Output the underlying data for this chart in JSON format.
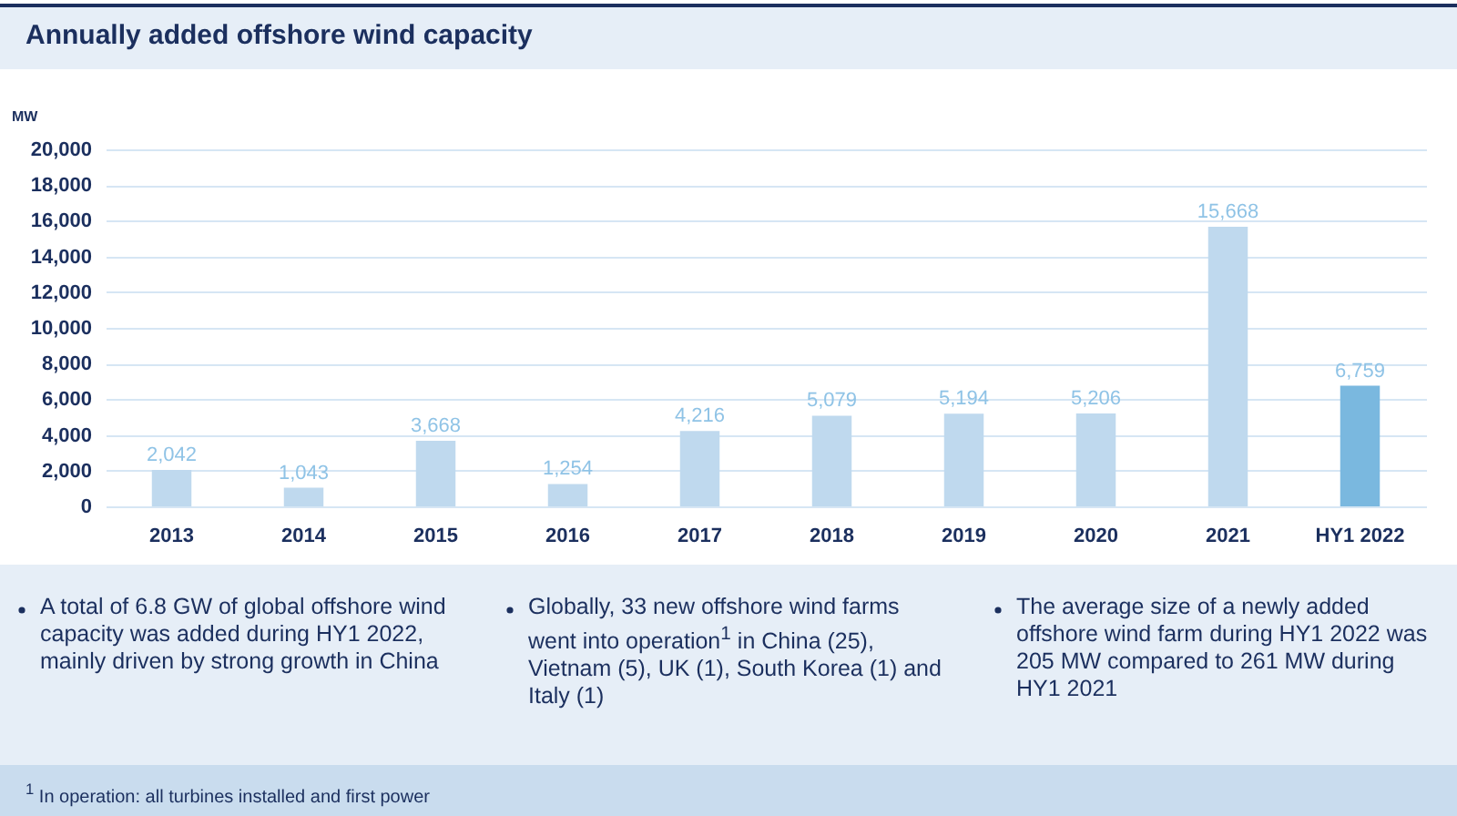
{
  "chart_data": {
    "type": "bar",
    "title": "Annually added offshore wind capacity",
    "ylabel": "MW",
    "categories": [
      "2013",
      "2014",
      "2015",
      "2016",
      "2017",
      "2018",
      "2019",
      "2020",
      "2021",
      "HY1 2022"
    ],
    "values": [
      2042,
      1043,
      3668,
      1254,
      4216,
      5079,
      5194,
      5206,
      15668,
      6759
    ],
    "value_labels": [
      "2,042",
      "1,043",
      "3,668",
      "1,254",
      "4,216",
      "5,079",
      "5,194",
      "5,206",
      "15,668",
      "6,759"
    ],
    "colors": [
      "#bfd9ee",
      "#bfd9ee",
      "#bfd9ee",
      "#bfd9ee",
      "#bfd9ee",
      "#bfd9ee",
      "#bfd9ee",
      "#bfd9ee",
      "#bfd9ee",
      "#7ab8df"
    ],
    "ylim": [
      0,
      20000
    ],
    "yticks": [
      0,
      {
        "value": 2000,
        "label": "2,000"
      },
      {
        "value": 4000,
        "label": "4,000"
      },
      {
        "value": 6000,
        "label": "6,000"
      },
      {
        "value": 8000,
        "label": "8,000"
      },
      {
        "value": 10000,
        "label": "10,000"
      },
      {
        "value": 12000,
        "label": "12,000"
      },
      {
        "value": 14000,
        "label": "14,000"
      },
      {
        "value": 16000,
        "label": "16,000"
      },
      {
        "value": 18000,
        "label": "18,000"
      },
      {
        "value": 20000,
        "label": "20,000"
      }
    ],
    "grid": "y",
    "annotations": [
      "A total of 6.8 GW of global offshore wind capacity was added during HY1 2022, mainly driven by strong growth in China",
      "Globally, 33 new offshore wind farms went into operation$^{1}$ in China (25), Vietnam (5), UK (1), South Korea (1) and Italy (1)",
      "The average size of a newly added offshore wind farm during HY1 2022 was 205 MW compared to 261 MW during HY1 2021",
      "$^{1}$ In operation: all turbines installed and first power"
    ]
  }
}
